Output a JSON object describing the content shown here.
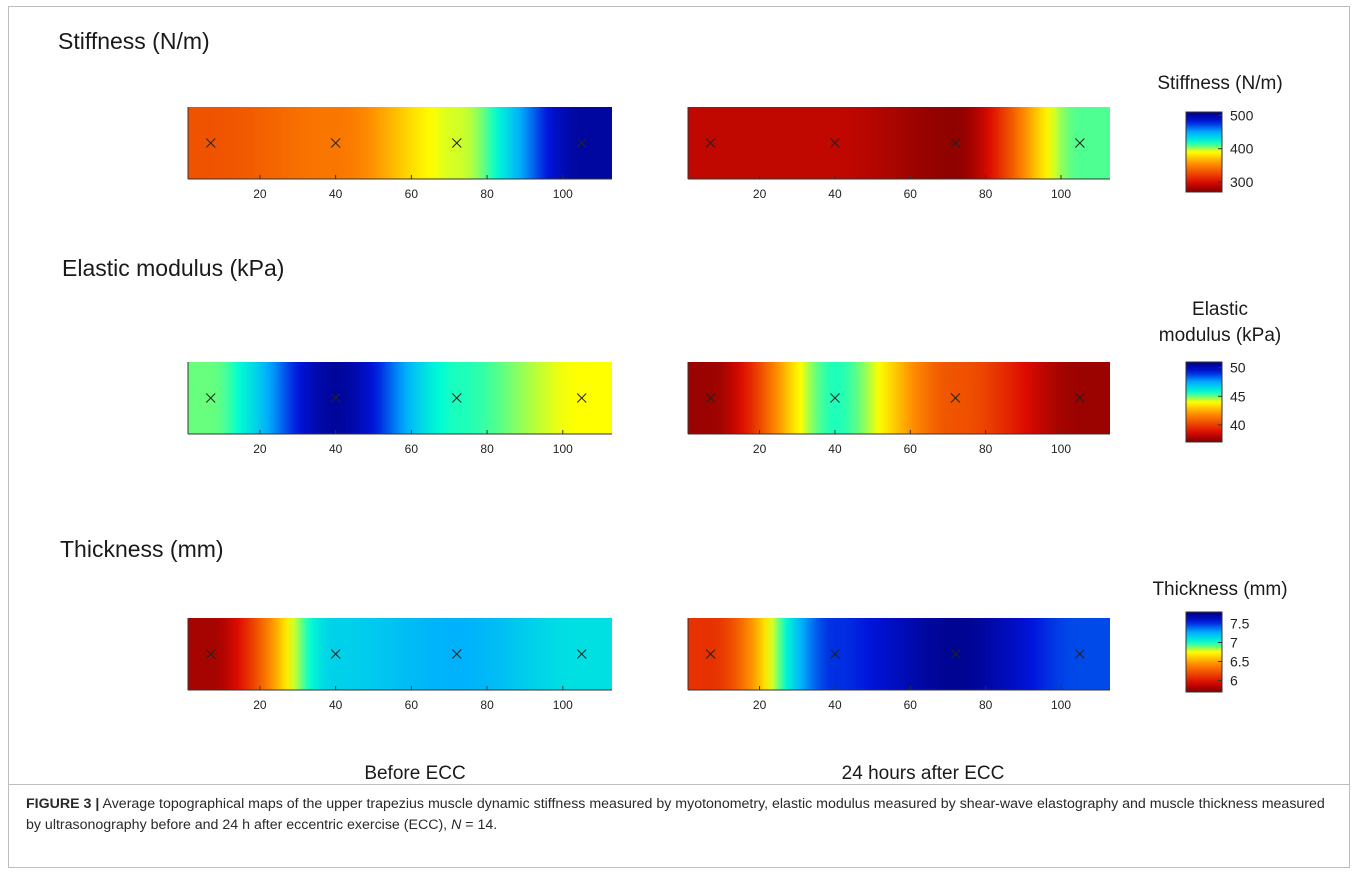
{
  "rows": [
    {
      "title": "Stiffness (N/m)",
      "colorbar_title": "Stiffness (N/m)",
      "colorbar_ticks": [
        "500",
        "400",
        "300"
      ]
    },
    {
      "title": "Elastic modulus (kPa)",
      "colorbar_title_line1": "Elastic",
      "colorbar_title_line2": "modulus (kPa)",
      "colorbar_ticks": [
        "50",
        "45",
        "40"
      ]
    },
    {
      "title": "Thickness (mm)",
      "colorbar_title": "Thickness (mm)",
      "colorbar_ticks": [
        "7.5",
        "7",
        "6.5",
        "6"
      ]
    }
  ],
  "columns": [
    "Before ECC",
    "24 hours after ECC"
  ],
  "caption": {
    "label": "FIGURE 3 |",
    "text": " Average topographical maps of the upper trapezius muscle dynamic stiffness measured by myotonometry, elastic modulus measured by shear-wave elastography and muscle thickness measured by ultrasonography before and 24 h after eccentric exercise (ECC), ",
    "n_label": "N",
    "n_value": " = 14."
  },
  "chart_data": {
    "type": "heatmap",
    "x_ticks": [
      20,
      40,
      60,
      80,
      100
    ],
    "xlim": [
      1,
      113
    ],
    "marker_x": [
      7,
      40,
      72,
      105
    ],
    "colormap": "jet (reversed: red = low, blue = high)",
    "maps": [
      {
        "row": "Stiffness (N/m)",
        "clim": [
          270,
          510
        ],
        "panels": [
          {
            "column": "Before ECC",
            "values": [
              330,
              345,
              395,
              500
            ]
          },
          {
            "column": "24 hours after ECC",
            "values": [
              290,
              290,
              275,
              410
            ]
          }
        ]
      },
      {
        "row": "Elastic modulus (kPa)",
        "clim": [
          37,
          51
        ],
        "panels": [
          {
            "column": "Before ECC",
            "values": [
              45,
              50.5,
              45.5,
              44
            ]
          },
          {
            "column": "24 hours after ECC",
            "values": [
              37.5,
              45.5,
              40.5,
              37.5
            ]
          }
        ]
      },
      {
        "row": "Thickness (mm)",
        "clim": [
          5.7,
          7.8
        ],
        "panels": [
          {
            "column": "Before ECC",
            "values": [
              5.8,
              7.15,
              7.25,
              7.1
            ]
          },
          {
            "column": "24 hours after ECC",
            "values": [
              6.1,
              7.5,
              7.75,
              7.45
            ]
          }
        ]
      }
    ]
  }
}
